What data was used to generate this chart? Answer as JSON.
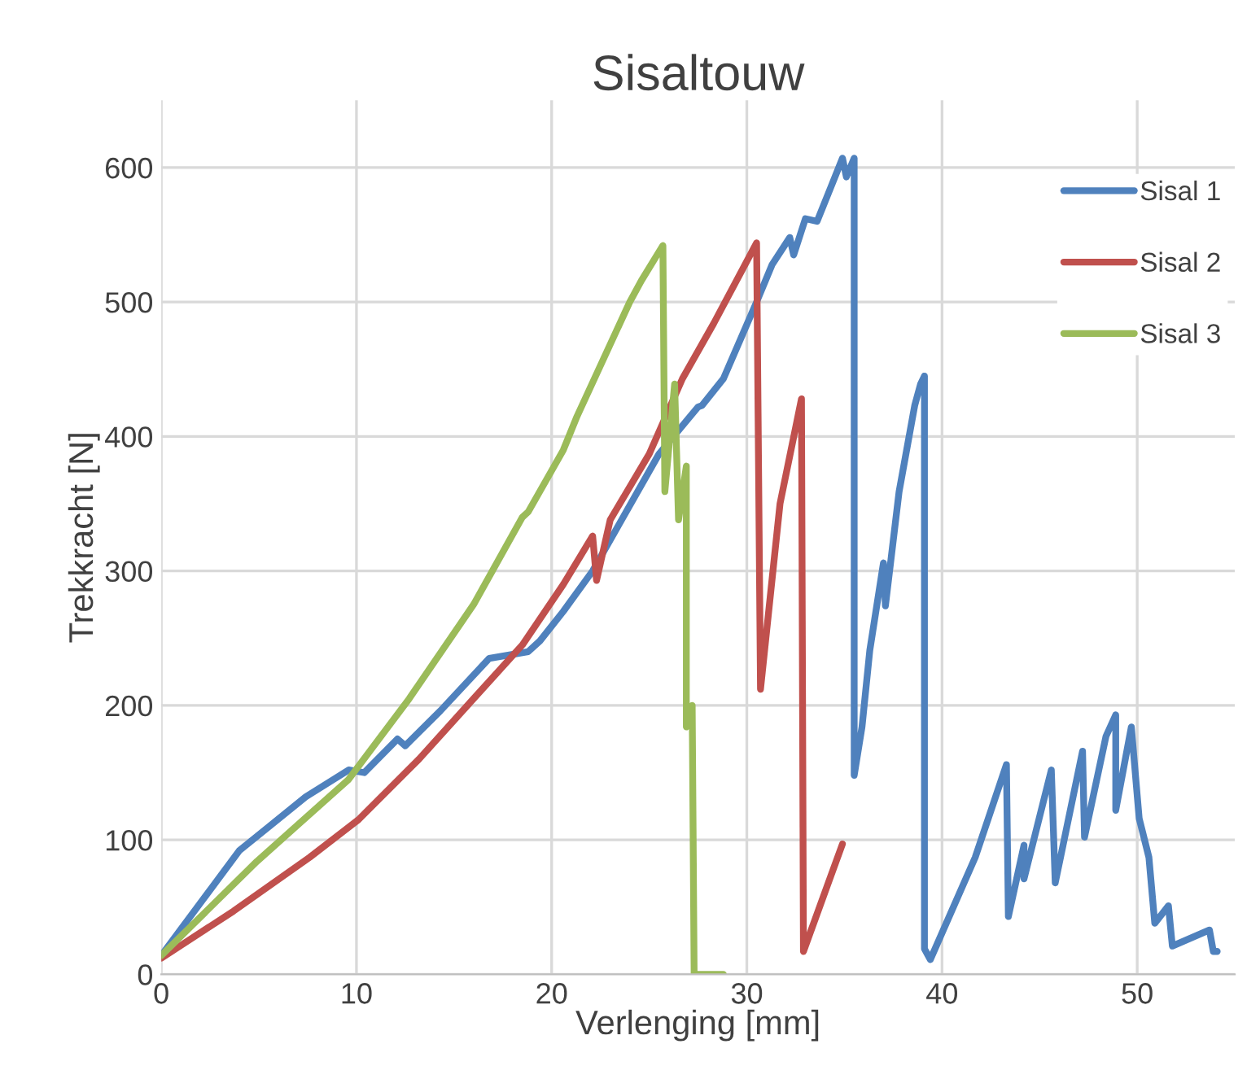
{
  "chart_data": {
    "type": "line",
    "title": "Sisaltouw",
    "xlabel": "Verlenging [mm]",
    "ylabel": "Trekkracht [N]",
    "xlim": [
      0,
      55
    ],
    "xticks": [
      0,
      10,
      20,
      30,
      40,
      50
    ],
    "ylim": [
      0,
      650
    ],
    "yticks": [
      0,
      100,
      200,
      300,
      400,
      500,
      600
    ],
    "grid": true,
    "legend": "right",
    "marker": "none",
    "line_style": "solid",
    "series": [
      {
        "name": "Sisal 1",
        "color": "#4f81bd",
        "x": [
          0,
          4.0,
          7.4,
          9.6,
          10.4,
          12.1,
          12.5,
          14.3,
          16.8,
          18.8,
          19.4,
          20.6,
          22.1,
          25.5,
          27.5,
          27.7,
          28.8,
          30.5,
          31.3,
          32.2,
          32.4,
          33.0,
          33.6,
          34.9,
          35.1,
          35.5,
          35.5,
          35.9,
          36.3,
          37.0,
          37.1,
          37.8,
          38.6,
          38.9,
          39.1,
          39.1,
          39.4,
          41.7,
          43.3,
          43.4,
          44.2,
          44.2,
          45.6,
          45.8,
          47.2,
          47.3,
          48.4,
          48.9,
          48.9,
          49.7,
          50.1,
          50.6,
          50.9,
          51.6,
          51.8,
          53.7,
          53.9,
          54.1
        ],
        "values": [
          14,
          92,
          132,
          152,
          150,
          175,
          170,
          196,
          235,
          240,
          248,
          270,
          300,
          387,
          422,
          423,
          443,
          500,
          528,
          548,
          535,
          562,
          560,
          607,
          593,
          607,
          148,
          184,
          241,
          306,
          274,
          359,
          423,
          439,
          445,
          19,
          11,
          87,
          156,
          43,
          96,
          71,
          152,
          68,
          166,
          102,
          177,
          193,
          122,
          184,
          116,
          87,
          38,
          51,
          21,
          33,
          17,
          17
        ]
      },
      {
        "name": "Sisal 2",
        "color": "#c0504d",
        "x": [
          0,
          3.7,
          7.6,
          10.1,
          13.2,
          16.0,
          18.5,
          20.6,
          22.1,
          22.3,
          23.0,
          25.0,
          26.7,
          28.3,
          30.5,
          30.7,
          31.7,
          32.8,
          32.9,
          34.9
        ],
        "values": [
          12,
          47,
          87,
          115,
          160,
          205,
          245,
          290,
          326,
          293,
          338,
          387,
          443,
          484,
          544,
          212,
          350,
          428,
          17,
          97
        ]
      },
      {
        "name": "Sisal 3",
        "color": "#9bbb59",
        "x": [
          0,
          4.9,
          9.6,
          12.7,
          16.0,
          18.5,
          18.8,
          20.6,
          21.3,
          24.0,
          24.6,
          25.4,
          25.7,
          25.8,
          26.3,
          26.5,
          26.9,
          26.9,
          27.2,
          27.3,
          28.8
        ],
        "values": [
          14,
          84,
          145,
          205,
          275,
          340,
          344,
          390,
          415,
          500,
          516,
          535,
          542,
          359,
          439,
          338,
          378,
          184,
          200,
          0,
          0
        ]
      }
    ]
  }
}
